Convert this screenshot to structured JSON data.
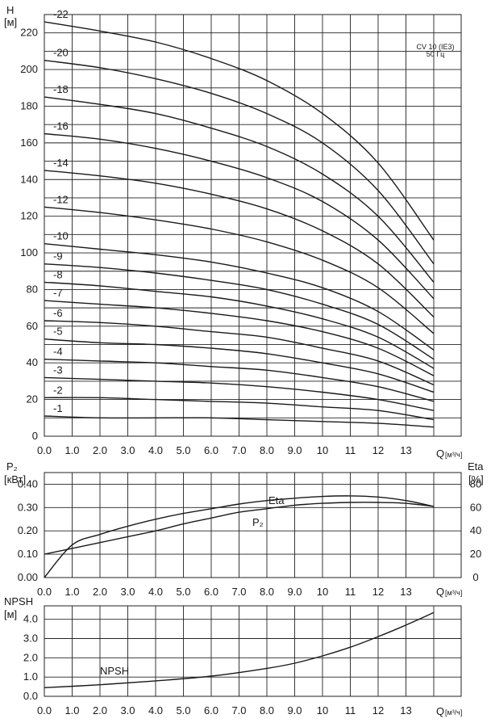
{
  "chart_data": [
    {
      "type": "line",
      "title": "CV 10 (IE3)",
      "subtitle": "50 Гц",
      "ylabel_symbol": "H",
      "ylabel_unit": "[м]",
      "xlabel_symbol": "Q",
      "xlabel_unit": "[м³/ч]",
      "xlim": [
        0,
        14
      ],
      "ylim": [
        0,
        230
      ],
      "x_ticks": [
        "0.0",
        "1.0",
        "2.0",
        "3.0",
        "4.0",
        "5.0",
        "6.0",
        "7.0",
        "8.0",
        "9.0",
        "10",
        "11",
        "12",
        "13"
      ],
      "y_ticks": [
        "0",
        "20",
        "40",
        "60",
        "80",
        "100",
        "120",
        "140",
        "160",
        "180",
        "200",
        "220"
      ],
      "grid": true,
      "x": [
        0,
        2,
        4,
        6,
        8,
        10,
        12,
        14
      ],
      "series": [
        {
          "name": "-22",
          "values": [
            226,
            221,
            215,
            206,
            194,
            176,
            149,
            107
          ]
        },
        {
          "name": "-20",
          "values": [
            205,
            201,
            195,
            187,
            176,
            160,
            134,
            94
          ]
        },
        {
          "name": "-18",
          "values": [
            185,
            181,
            176,
            168,
            158,
            143,
            120,
            84
          ]
        },
        {
          "name": "-16",
          "values": [
            165,
            162,
            157,
            150,
            141,
            128,
            107,
            75
          ]
        },
        {
          "name": "-14",
          "values": [
            145,
            142,
            138,
            132,
            124,
            112,
            94,
            65
          ]
        },
        {
          "name": "-12",
          "values": [
            125,
            122,
            118,
            113,
            106,
            96,
            81,
            56
          ]
        },
        {
          "name": "-10",
          "values": [
            105,
            102,
            99,
            95,
            89,
            81,
            68,
            47
          ]
        },
        {
          "name": "-9",
          "values": [
            94,
            92,
            89,
            85,
            80,
            72,
            61,
            42
          ]
        },
        {
          "name": "-8",
          "values": [
            84,
            82,
            79,
            76,
            71,
            64,
            54,
            37
          ]
        },
        {
          "name": "-7",
          "values": [
            74,
            72,
            70,
            67,
            63,
            57,
            48,
            33
          ]
        },
        {
          "name": "-6",
          "values": [
            63,
            62,
            60,
            57,
            54,
            48,
            41,
            28
          ]
        },
        {
          "name": "-5",
          "values": [
            53,
            51,
            50,
            48,
            45,
            40,
            34,
            24
          ]
        },
        {
          "name": "-4",
          "values": [
            42,
            41,
            40,
            38,
            36,
            32,
            27,
            19
          ]
        },
        {
          "name": "-3",
          "values": [
            32,
            31,
            30,
            29,
            27,
            24,
            20,
            14
          ]
        },
        {
          "name": "-2",
          "values": [
            21,
            21,
            20,
            19,
            18,
            16,
            14,
            9
          ]
        },
        {
          "name": "-1",
          "values": [
            11,
            10,
            10,
            10,
            9,
            8,
            7,
            5
          ]
        }
      ]
    },
    {
      "type": "line",
      "ylabel_symbol": "P₂",
      "ylabel_unit": "[кВт]",
      "y2label_symbol": "Eta",
      "y2label_unit": "[%]",
      "xlabel_symbol": "Q",
      "xlabel_unit": "[м³/ч]",
      "xlim": [
        0,
        14
      ],
      "ylim": [
        0,
        0.45
      ],
      "y2lim": [
        0,
        90
      ],
      "x_ticks": [
        "0.0",
        "1.0",
        "2.0",
        "3.0",
        "4.0",
        "5.0",
        "6.0",
        "7.0",
        "8.0",
        "9.0",
        "10",
        "11",
        "12",
        "13"
      ],
      "y_ticks": [
        "0.00",
        "0.10",
        "0.20",
        "0.30",
        "0.40"
      ],
      "y2_ticks": [
        "0",
        "20",
        "40",
        "60",
        "80"
      ],
      "grid": true,
      "x": [
        0,
        1,
        2,
        3,
        4,
        5,
        6,
        7,
        8,
        9,
        10,
        11,
        12,
        13,
        14
      ],
      "series": [
        {
          "name": "P₂",
          "axis": "left",
          "values": [
            0.1,
            0.125,
            0.15,
            0.175,
            0.2,
            0.23,
            0.255,
            0.28,
            0.295,
            0.31,
            0.318,
            0.322,
            0.322,
            0.318,
            0.305
          ]
        },
        {
          "name": "Eta",
          "axis": "right",
          "values": [
            0,
            28,
            37,
            44,
            50,
            55,
            59,
            63,
            66,
            68,
            69.5,
            70,
            69,
            66,
            61
          ]
        }
      ]
    },
    {
      "type": "line",
      "ylabel_symbol": "NPSH",
      "ylabel_unit": "[м]",
      "xlabel_symbol": "Q",
      "xlabel_unit": "[м³/ч]",
      "xlim": [
        0,
        14
      ],
      "ylim": [
        0,
        4.7
      ],
      "x_ticks": [
        "0.0",
        "1.0",
        "2.0",
        "3.0",
        "4.0",
        "5.0",
        "6.0",
        "7.0",
        "8.0",
        "9.0",
        "10",
        "11",
        "12",
        "13"
      ],
      "y_ticks": [
        "0.0",
        "1.0",
        "2.0",
        "3.0",
        "4.0"
      ],
      "grid": true,
      "x": [
        0,
        2,
        4,
        6,
        8,
        9,
        10,
        11,
        12,
        13,
        14
      ],
      "series": [
        {
          "name": "NPSH",
          "values": [
            0.45,
            0.6,
            0.8,
            1.05,
            1.45,
            1.72,
            2.1,
            2.55,
            3.1,
            3.7,
            4.35
          ]
        }
      ]
    }
  ]
}
